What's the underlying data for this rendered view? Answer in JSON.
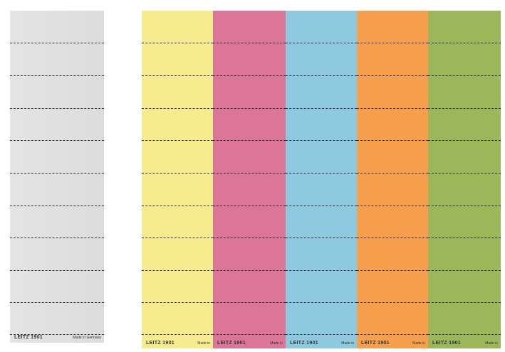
{
  "strips": [
    {
      "label": "LEITZ 1901",
      "origin": "Made in Germany"
    },
    {
      "label": "LEITZ 1901",
      "origin": "Made in"
    },
    {
      "label": "LEITZ 1901",
      "origin": "Made in"
    },
    {
      "label": "LEITZ 1901",
      "origin": "Made in"
    },
    {
      "label": "LEITZ 1901",
      "origin": "Made in"
    },
    {
      "label": "LEITZ 1901",
      "origin": "Made in"
    }
  ]
}
